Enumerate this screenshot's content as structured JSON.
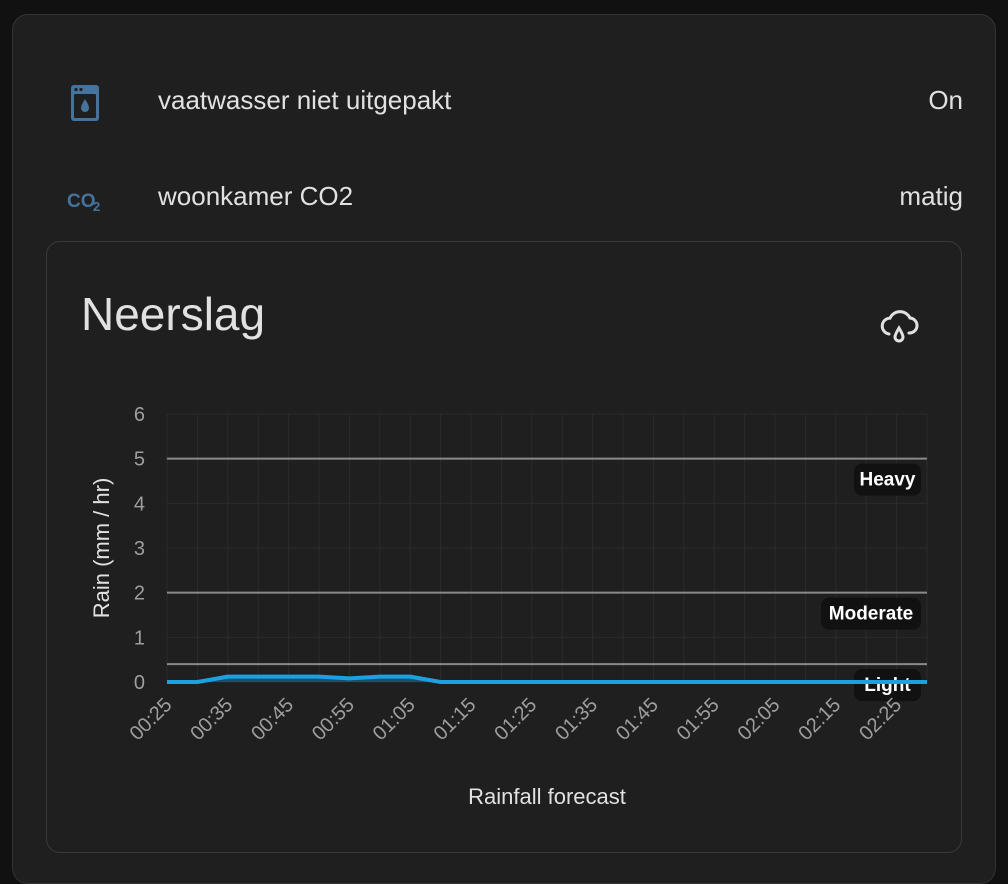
{
  "entities": [
    {
      "name": "vaatwasser niet uitgepakt",
      "state": "On",
      "icon": "dishwasher-icon"
    },
    {
      "name": "woonkamer CO2",
      "state": "matig",
      "icon": "co2-icon"
    }
  ],
  "card": {
    "title": "Neerslag",
    "icon": "weather-pouring-icon"
  },
  "colors": {
    "accent_icon": "#44739e",
    "series": "#1ba1e2",
    "threshold_line": "#8a8a8a",
    "label_bg": "#111111"
  },
  "chart_data": {
    "type": "area",
    "xlabel": "Rainfall forecast",
    "ylabel": "Rain (mm / hr)",
    "ylim": [
      0,
      6
    ],
    "yticks": [
      "0",
      "1",
      "2",
      "3",
      "4",
      "5",
      "6"
    ],
    "x": [
      "00:25",
      "00:30",
      "00:35",
      "00:40",
      "00:45",
      "00:50",
      "00:55",
      "01:00",
      "01:05",
      "01:10",
      "01:15",
      "01:20",
      "01:25",
      "01:30",
      "01:35",
      "01:40",
      "01:45",
      "01:50",
      "01:55",
      "02:00",
      "02:05",
      "02:10",
      "02:15",
      "02:20",
      "02:25",
      "02:30"
    ],
    "xticks": [
      "00:25",
      "00:35",
      "00:45",
      "00:55",
      "01:05",
      "01:15",
      "01:25",
      "01:35",
      "01:45",
      "01:55",
      "02:05",
      "02:15",
      "02:25"
    ],
    "series": [
      {
        "values": [
          0,
          0,
          0.12,
          0.12,
          0.12,
          0.12,
          0.08,
          0.12,
          0.12,
          0,
          0,
          0,
          0,
          0,
          0,
          0,
          0,
          0,
          0,
          0,
          0,
          0,
          0,
          0,
          0,
          0
        ]
      }
    ],
    "thresholds": [
      {
        "label": "Heavy",
        "value": 5
      },
      {
        "label": "Moderate",
        "value": 2
      },
      {
        "label": "Light",
        "value": 0.4
      }
    ],
    "grid": true,
    "legend": "none"
  }
}
